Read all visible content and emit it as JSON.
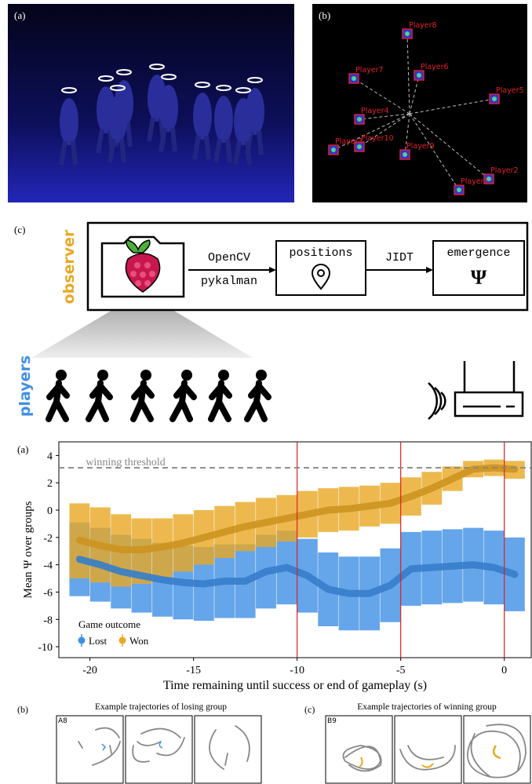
{
  "panel_labels": {
    "top_a": "(a)",
    "top_b": "(b)",
    "c": "(c)",
    "chart_a": "(a)",
    "bottom_b": "(b)",
    "bottom_c": "(c)"
  },
  "tracking": {
    "players": [
      "Player8",
      "Player6",
      "Player7",
      "Player5",
      "Player4",
      "Player10",
      "Player9",
      "Player2",
      "Player1",
      "Player3"
    ]
  },
  "pipeline": {
    "observer": "observer",
    "step1_top": "OpenCV",
    "step1_bottom": "pykalman",
    "positions": "positions",
    "step2": "JIDT",
    "emergence": "emergence",
    "symbol": "Ψ",
    "players": "players"
  },
  "chart_data": {
    "type": "line",
    "xlabel": "Time remaining until success or end of gameplay (s)",
    "ylabel": "Mean Ψ over groups",
    "xlim": [
      -21.5,
      1.3
    ],
    "ylim": [
      -10.8,
      5
    ],
    "xticks": [
      -20,
      -15,
      -10,
      -5,
      0
    ],
    "yticks": [
      -10,
      -8,
      -6,
      -4,
      -2,
      0,
      2,
      4
    ],
    "threshold": {
      "text": "winning threshold",
      "value": 3.1
    },
    "vlines": [
      -10,
      -5,
      0
    ],
    "legend_title": "Game outcome",
    "x": [
      -20.5,
      -19.5,
      -18.5,
      -17.5,
      -16.5,
      -15.5,
      -14.5,
      -13.5,
      -12.5,
      -11.5,
      -10.5,
      -9.5,
      -8.5,
      -7.5,
      -6.5,
      -5.5,
      -4.5,
      -3.5,
      -2.5,
      -1.5,
      -0.5,
      0.5
    ],
    "series": [
      {
        "name": "Lost",
        "color": "#3f8fe6",
        "values": [
          -3.6,
          -4.0,
          -4.5,
          -4.8,
          -5.1,
          -5.3,
          -5.4,
          -5.2,
          -5.2,
          -4.5,
          -4.2,
          -4.8,
          -5.8,
          -6.1,
          -6.1,
          -5.5,
          -4.3,
          -4.2,
          -4.1,
          -4.0,
          -4.2,
          -4.7
        ],
        "upper": [
          -0.9,
          -1.3,
          -1.8,
          -2.1,
          -2.4,
          -2.6,
          -2.7,
          -2.5,
          -2.5,
          -1.8,
          -1.5,
          -2.1,
          -3.1,
          -3.4,
          -3.4,
          -2.8,
          -1.6,
          -1.5,
          -1.4,
          -1.3,
          -1.5,
          -2.0
        ],
        "lower": [
          -6.3,
          -6.7,
          -7.2,
          -7.5,
          -7.8,
          -8.0,
          -8.1,
          -7.9,
          -7.9,
          -7.2,
          -6.9,
          -7.5,
          -8.5,
          -8.8,
          -8.8,
          -8.2,
          -7.0,
          -6.9,
          -6.8,
          -6.7,
          -6.9,
          -7.4
        ]
      },
      {
        "name": "Won",
        "color": "#e9a824",
        "values": [
          -2.2,
          -2.6,
          -2.9,
          -2.9,
          -2.7,
          -2.4,
          -2.0,
          -1.6,
          -1.2,
          -0.9,
          -0.6,
          -0.3,
          0.0,
          0.1,
          0.3,
          0.5,
          1.0,
          1.6,
          2.3,
          3.0,
          3.1,
          3.0
        ],
        "upper": [
          0.5,
          0.2,
          -0.3,
          -0.6,
          -0.6,
          -0.3,
          0.0,
          0.3,
          0.6,
          0.9,
          1.1,
          1.4,
          1.6,
          1.7,
          1.8,
          2.0,
          2.4,
          2.8,
          3.2,
          3.6,
          3.7,
          3.6
        ],
        "lower": [
          -5.0,
          -5.3,
          -5.6,
          -5.4,
          -4.9,
          -4.5,
          -4.0,
          -3.5,
          -3.0,
          -2.7,
          -2.3,
          -2.0,
          -1.6,
          -1.5,
          -1.2,
          -1.0,
          -0.4,
          0.4,
          1.4,
          2.4,
          2.5,
          2.3
        ]
      }
    ]
  },
  "trajectories": {
    "losing": {
      "title": "Example trajectories of losing group",
      "id": "A8"
    },
    "winning": {
      "title": "Example trajectories of winning group",
      "id": "B9"
    }
  }
}
